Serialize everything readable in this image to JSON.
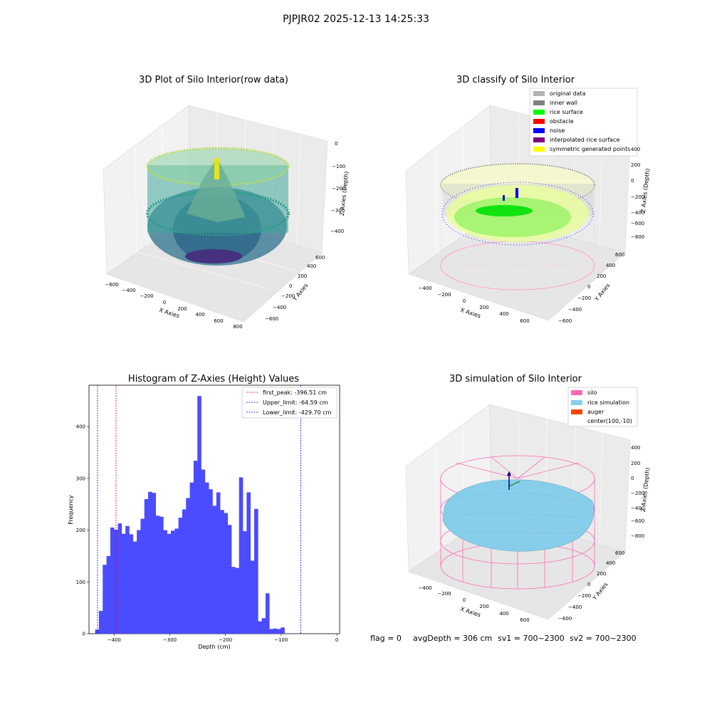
{
  "figure": {
    "suptitle": "PJPJR02 2025-12-13 14:25:33",
    "status": {
      "flag": "flag = 0",
      "avg_depth": "avgDepth = 306 cm",
      "sv1": "sv1 = 700~2300",
      "sv2": "sv2 = 700~2300"
    }
  },
  "panels": {
    "raw": {
      "title": "3D Plot of Silo Interior(row data)",
      "xlabel": "X Axies",
      "ylabel": "Y Axies",
      "zlabel": "Z Axies (Depth)",
      "xticks": [
        "−600",
        "−400",
        "−200",
        "0",
        "200",
        "400",
        "600",
        "800"
      ],
      "yticks": [
        "−600",
        "−400",
        "−200",
        "0",
        "200",
        "400",
        "600"
      ],
      "zticks": [
        "0",
        "−100",
        "−200",
        "−300",
        "−400"
      ],
      "colormap": "viridis"
    },
    "classify": {
      "title": "3D classify of Silo Interior",
      "xlabel": "X Axies",
      "ylabel": "Y Axies",
      "zlabel": "Z Axies (Depth)",
      "xticks": [
        "−400",
        "−200",
        "0",
        "200",
        "400",
        "600"
      ],
      "yticks": [
        "−600",
        "−400",
        "−200",
        "0",
        "200",
        "400",
        "600"
      ],
      "zticks": [
        "400",
        "200",
        "0",
        "−200",
        "−400",
        "−600",
        "−800"
      ],
      "legend": [
        {
          "label": "original data",
          "color": "#b3b3b3"
        },
        {
          "label": "inner wall",
          "color": "#808080"
        },
        {
          "label": "rice surface",
          "color": "#00ff00"
        },
        {
          "label": "obstacle",
          "color": "#ff0000"
        },
        {
          "label": "noise",
          "color": "#0000ff"
        },
        {
          "label": "interpolated rice surface",
          "color": "#800080"
        },
        {
          "label": "symmetric generated points",
          "color": "#ffff00"
        }
      ]
    },
    "histogram": {
      "title": "Histogram of Z-Axies (Height) Values",
      "xlabel": "Depth (cm)",
      "ylabel": "Frequency",
      "xticks": [
        -400,
        -300,
        -200,
        -100,
        0
      ],
      "yticks": [
        0,
        100,
        200,
        300,
        400
      ],
      "legend": [
        {
          "label": "first_peak: -396.51 cm",
          "color": "#ff0000"
        },
        {
          "label": "Upper_limit: -64.59 cm",
          "color": "#0000ff"
        },
        {
          "label": "Lower_limit: -429.70 cm",
          "color": "#0000ff"
        }
      ]
    },
    "simulation": {
      "title": "3D simulation of Silo Interior",
      "xlabel": "X Axies",
      "ylabel": "Y Axies",
      "zlabel": "Z Axies (Depth)",
      "xticks": [
        "−400",
        "−200",
        "0",
        "200",
        "400",
        "600"
      ],
      "yticks": [
        "−600",
        "−400",
        "−200",
        "0",
        "200",
        "400",
        "600"
      ],
      "zticks": [
        "400",
        "200",
        "0",
        "−200",
        "−400",
        "−600",
        "−800"
      ],
      "legend": [
        {
          "label": "silo",
          "color": "#ff69b4"
        },
        {
          "label": "rice simulation",
          "color": "#87ceeb"
        },
        {
          "label": "auger",
          "color": "#ff4500"
        },
        {
          "label": "center(100,-10)",
          "color": ""
        }
      ]
    }
  },
  "chart_data": {
    "type": "bar",
    "title": "Histogram of Z-Axies (Height) Values",
    "xlabel": "Depth (cm)",
    "ylabel": "Frequency",
    "xlim": [
      -445,
      5
    ],
    "ylim": [
      0,
      480
    ],
    "bar_color": "#4b4bff",
    "bin_start": -434,
    "bin_width": 6.8,
    "values": [
      8,
      44,
      133,
      150,
      205,
      201,
      213,
      193,
      208,
      192,
      178,
      200,
      222,
      260,
      274,
      272,
      228,
      226,
      200,
      193,
      199,
      203,
      224,
      240,
      262,
      292,
      334,
      459,
      317,
      292,
      279,
      247,
      273,
      239,
      233,
      210,
      129,
      127,
      302,
      198,
      273,
      141,
      241,
      24,
      30,
      78,
      9,
      10,
      9,
      12
    ],
    "vlines": [
      {
        "name": "first_peak",
        "x": -396.51,
        "color": "#ff0000"
      },
      {
        "name": "Upper_limit",
        "x": -64.59,
        "color": "#0000ff"
      },
      {
        "name": "Lower_limit",
        "x": -429.7,
        "color": "#0000ff"
      }
    ]
  }
}
